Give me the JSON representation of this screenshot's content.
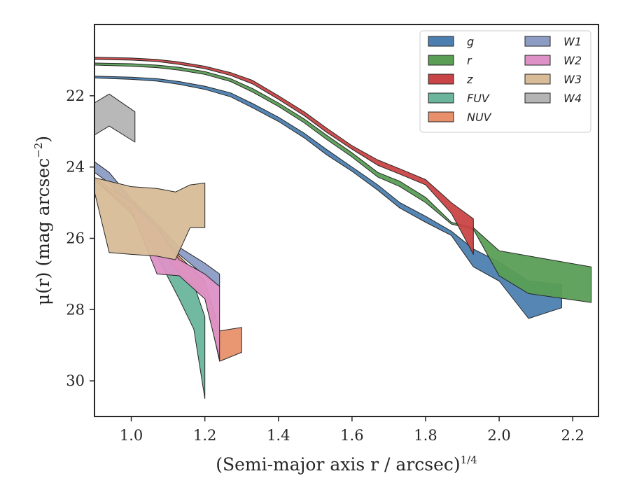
{
  "chart_data": {
    "type": "area",
    "title": "",
    "xlabel": "(Semi-major axis r / arcsec)",
    "xlabel_italic_part": "r",
    "xlabel_superscript": "1/4",
    "ylabel": "μ(r) (mag arcsec",
    "ylabel_superscript": "−2",
    "ylabel_close": ")",
    "xlim": [
      0.9,
      2.27
    ],
    "ylim": [
      31.0,
      20.0
    ],
    "y_inverted": true,
    "x_ticks": [
      1.0,
      1.2,
      1.4,
      1.6,
      1.8,
      2.0,
      2.2
    ],
    "x_tick_labels": [
      "1.0",
      "1.2",
      "1.4",
      "1.6",
      "1.8",
      "2.0",
      "2.2"
    ],
    "y_ticks": [
      22,
      24,
      26,
      28,
      30
    ],
    "y_tick_labels": [
      "22",
      "24",
      "26",
      "28",
      "30"
    ],
    "grid": false,
    "legend": {
      "position": "top-right",
      "columns": 2
    },
    "series": [
      {
        "name": "g",
        "color": "#4c7fb0",
        "upper": [
          [
            0.9,
            21.45
          ],
          [
            1.0,
            21.48
          ],
          [
            1.07,
            21.52
          ],
          [
            1.13,
            21.6
          ],
          [
            1.2,
            21.73
          ],
          [
            1.27,
            21.92
          ],
          [
            1.33,
            22.22
          ],
          [
            1.4,
            22.6
          ],
          [
            1.47,
            23.05
          ],
          [
            1.53,
            23.5
          ],
          [
            1.6,
            24.0
          ],
          [
            1.67,
            24.5
          ],
          [
            1.73,
            25.0
          ],
          [
            1.8,
            25.38
          ],
          [
            1.87,
            25.8
          ],
          [
            1.93,
            26.3
          ],
          [
            2.0,
            26.67
          ],
          [
            2.08,
            27.2
          ],
          [
            2.17,
            27.3
          ]
        ],
        "lower": [
          [
            0.9,
            21.5
          ],
          [
            1.0,
            21.54
          ],
          [
            1.07,
            21.59
          ],
          [
            1.13,
            21.68
          ],
          [
            1.2,
            21.82
          ],
          [
            1.27,
            22.03
          ],
          [
            1.33,
            22.34
          ],
          [
            1.4,
            22.72
          ],
          [
            1.47,
            23.18
          ],
          [
            1.53,
            23.65
          ],
          [
            1.6,
            24.12
          ],
          [
            1.67,
            24.65
          ],
          [
            1.73,
            25.15
          ],
          [
            1.8,
            25.55
          ],
          [
            1.87,
            25.92
          ],
          [
            1.93,
            26.8
          ],
          [
            2.0,
            27.2
          ],
          [
            2.08,
            28.25
          ],
          [
            2.17,
            27.95
          ]
        ]
      },
      {
        "name": "r",
        "color": "#5a9e56",
        "upper": [
          [
            0.9,
            21.08
          ],
          [
            1.0,
            21.1
          ],
          [
            1.07,
            21.14
          ],
          [
            1.13,
            21.2
          ],
          [
            1.2,
            21.32
          ],
          [
            1.27,
            21.52
          ],
          [
            1.33,
            21.8
          ],
          [
            1.4,
            22.2
          ],
          [
            1.47,
            22.65
          ],
          [
            1.53,
            23.1
          ],
          [
            1.6,
            23.6
          ],
          [
            1.67,
            24.15
          ],
          [
            1.73,
            24.4
          ],
          [
            1.8,
            24.85
          ],
          [
            1.87,
            25.55
          ],
          [
            1.93,
            25.7
          ],
          [
            2.0,
            26.35
          ],
          [
            2.25,
            26.8
          ]
        ],
        "lower": [
          [
            0.9,
            21.14
          ],
          [
            1.0,
            21.17
          ],
          [
            1.07,
            21.21
          ],
          [
            1.13,
            21.28
          ],
          [
            1.2,
            21.4
          ],
          [
            1.27,
            21.6
          ],
          [
            1.33,
            21.9
          ],
          [
            1.4,
            22.3
          ],
          [
            1.47,
            22.76
          ],
          [
            1.53,
            23.22
          ],
          [
            1.6,
            23.72
          ],
          [
            1.67,
            24.28
          ],
          [
            1.73,
            24.55
          ],
          [
            1.8,
            25.0
          ],
          [
            1.87,
            25.6
          ],
          [
            1.93,
            25.75
          ],
          [
            2.0,
            27.05
          ],
          [
            2.08,
            27.55
          ],
          [
            2.25,
            27.8
          ]
        ]
      },
      {
        "name": "z",
        "color": "#c94446",
        "upper": [
          [
            0.9,
            20.92
          ],
          [
            1.0,
            20.94
          ],
          [
            1.07,
            20.98
          ],
          [
            1.13,
            21.05
          ],
          [
            1.2,
            21.17
          ],
          [
            1.27,
            21.35
          ],
          [
            1.33,
            21.57
          ],
          [
            1.4,
            22.0
          ],
          [
            1.47,
            22.45
          ],
          [
            1.53,
            22.9
          ],
          [
            1.6,
            23.4
          ],
          [
            1.67,
            23.8
          ],
          [
            1.73,
            24.05
          ],
          [
            1.8,
            24.35
          ],
          [
            1.87,
            25.0
          ],
          [
            1.93,
            25.45
          ]
        ],
        "lower": [
          [
            0.9,
            20.98
          ],
          [
            1.0,
            21.0
          ],
          [
            1.07,
            21.04
          ],
          [
            1.13,
            21.12
          ],
          [
            1.2,
            21.24
          ],
          [
            1.27,
            21.43
          ],
          [
            1.33,
            21.67
          ],
          [
            1.4,
            22.1
          ],
          [
            1.47,
            22.56
          ],
          [
            1.53,
            23.02
          ],
          [
            1.6,
            23.5
          ],
          [
            1.67,
            23.95
          ],
          [
            1.73,
            24.2
          ],
          [
            1.8,
            24.5
          ],
          [
            1.87,
            25.3
          ],
          [
            1.93,
            26.45
          ]
        ]
      },
      {
        "name": "FUV",
        "color": "#6ab59c",
        "upper": [
          [
            0.9,
            24.35
          ],
          [
            1.0,
            25.0
          ],
          [
            1.07,
            26.0
          ],
          [
            1.13,
            26.9
          ],
          [
            1.17,
            27.3
          ],
          [
            1.2,
            28.2
          ]
        ],
        "lower": [
          [
            0.9,
            24.35
          ],
          [
            1.0,
            25.3
          ],
          [
            1.07,
            26.5
          ],
          [
            1.13,
            27.7
          ],
          [
            1.17,
            28.55
          ],
          [
            1.2,
            30.5
          ]
        ]
      },
      {
        "name": "NUV",
        "color": "#e8906c",
        "upper": [
          [
            0.9,
            24.3
          ],
          [
            1.0,
            25.1
          ],
          [
            1.07,
            25.7
          ],
          [
            1.13,
            26.5
          ],
          [
            1.2,
            27.2
          ],
          [
            1.24,
            28.6
          ],
          [
            1.3,
            28.5
          ]
        ],
        "lower": [
          [
            0.9,
            24.35
          ],
          [
            1.0,
            25.3
          ],
          [
            1.07,
            26.1
          ],
          [
            1.13,
            27.0
          ],
          [
            1.2,
            27.6
          ],
          [
            1.24,
            29.45
          ],
          [
            1.3,
            29.2
          ]
        ]
      },
      {
        "name": "W1",
        "color": "#8c9cc4",
        "upper": [
          [
            0.9,
            23.85
          ],
          [
            0.94,
            24.15
          ],
          [
            1.0,
            24.9
          ],
          [
            1.07,
            25.6
          ],
          [
            1.13,
            26.25
          ],
          [
            1.2,
            26.7
          ],
          [
            1.24,
            27.0
          ]
        ],
        "lower": [
          [
            0.9,
            24.15
          ],
          [
            0.94,
            24.45
          ],
          [
            1.0,
            25.15
          ],
          [
            1.07,
            25.85
          ],
          [
            1.13,
            26.45
          ],
          [
            1.2,
            27.05
          ],
          [
            1.24,
            27.35
          ]
        ]
      },
      {
        "name": "W2",
        "color": "#dd91c6",
        "upper": [
          [
            0.9,
            24.3
          ],
          [
            1.0,
            25.0
          ],
          [
            1.07,
            25.7
          ],
          [
            1.13,
            26.6
          ],
          [
            1.2,
            27.0
          ],
          [
            1.24,
            27.35
          ]
        ],
        "lower": [
          [
            0.9,
            24.35
          ],
          [
            1.0,
            25.2
          ],
          [
            1.07,
            27.0
          ],
          [
            1.13,
            27.05
          ],
          [
            1.2,
            27.7
          ],
          [
            1.24,
            29.4
          ]
        ]
      },
      {
        "name": "W3",
        "color": "#d8bc98",
        "upper": [
          [
            0.9,
            24.3
          ],
          [
            1.0,
            24.55
          ],
          [
            1.07,
            24.6
          ],
          [
            1.12,
            24.7
          ],
          [
            1.16,
            24.5
          ],
          [
            1.2,
            24.45
          ]
        ],
        "lower": [
          [
            0.9,
            24.7
          ],
          [
            0.94,
            26.4
          ],
          [
            1.0,
            26.45
          ],
          [
            1.07,
            26.5
          ],
          [
            1.12,
            26.6
          ],
          [
            1.16,
            25.7
          ],
          [
            1.2,
            25.7
          ]
        ]
      },
      {
        "name": "W4",
        "color": "#b4b4b4",
        "upper": [
          [
            0.9,
            22.2
          ],
          [
            0.94,
            21.95
          ],
          [
            1.01,
            22.45
          ]
        ],
        "lower": [
          [
            0.9,
            23.1
          ],
          [
            0.94,
            22.85
          ],
          [
            1.01,
            23.3
          ]
        ]
      }
    ]
  }
}
